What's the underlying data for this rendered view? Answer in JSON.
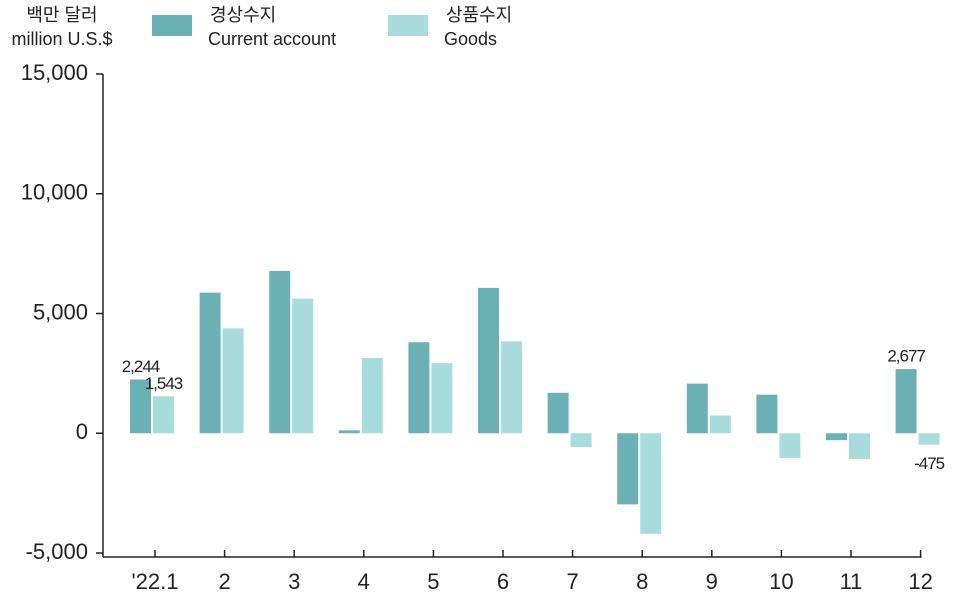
{
  "chart_data": {
    "type": "bar",
    "ylabel": "백만 달러",
    "ylabel_en": "million U.S.$",
    "categories": [
      "'22.1",
      "2",
      "3",
      "4",
      "5",
      "6",
      "7",
      "8",
      "9",
      "10",
      "11",
      "12"
    ],
    "series": [
      {
        "name": "경상수지",
        "name_en": "Current account",
        "color": "#6ab0b5",
        "values": [
          2244,
          5870,
          6780,
          120,
          3800,
          6070,
          1690,
          -2970,
          2070,
          1610,
          -290,
          2677
        ],
        "value_labels": [
          "2,244",
          null,
          null,
          null,
          null,
          null,
          null,
          null,
          null,
          null,
          null,
          "2,677"
        ]
      },
      {
        "name": "상품수지",
        "name_en": "Goods",
        "color": "#a8dcdc",
        "values": [
          1543,
          4380,
          5620,
          3140,
          2930,
          3840,
          -580,
          -4200,
          740,
          -1030,
          -1070,
          -475
        ],
        "value_labels": [
          "1,543",
          null,
          null,
          null,
          null,
          null,
          null,
          null,
          null,
          null,
          null,
          "-475"
        ]
      }
    ],
    "ylim": [
      -5000,
      15000
    ],
    "yticks": [
      {
        "value": -5000,
        "label": "-5,000"
      },
      0,
      {
        "value": 5000,
        "label": "5,000"
      },
      {
        "value": 10000,
        "label": "10,000"
      },
      {
        "value": 15000,
        "label": "15,000"
      }
    ],
    "grid": false
  }
}
